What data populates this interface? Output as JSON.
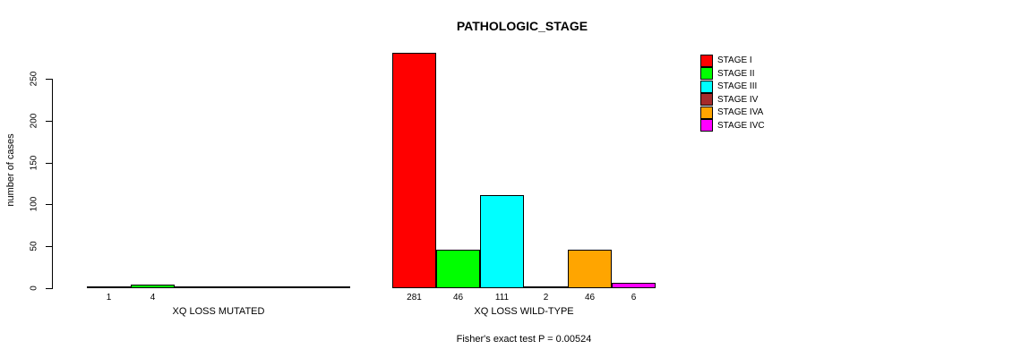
{
  "chart_data": {
    "type": "bar",
    "title": "PATHOLOGIC_STAGE",
    "ylabel": "number of cases",
    "yticks": [
      0,
      50,
      100,
      150,
      200,
      250
    ],
    "ylim": [
      0,
      281
    ],
    "grid": false,
    "legend_position": "right",
    "legend": [
      {
        "label": "STAGE I",
        "color": "#FF0000"
      },
      {
        "label": "STAGE II",
        "color": "#00FF00"
      },
      {
        "label": "STAGE III",
        "color": "#00FFFF"
      },
      {
        "label": "STAGE IV",
        "color": "#A52A2A"
      },
      {
        "label": "STAGE IVA",
        "color": "#FFA500"
      },
      {
        "label": "STAGE IVC",
        "color": "#FF00FF"
      }
    ],
    "groups": [
      {
        "label": "XQ LOSS MUTATED",
        "values": [
          1,
          4,
          0,
          0,
          0,
          0
        ],
        "value_labels": [
          "1",
          "4",
          "",
          "",
          "",
          ""
        ]
      },
      {
        "label": "XQ LOSS WILD-TYPE",
        "values": [
          281,
          46,
          111,
          2,
          46,
          6
        ],
        "value_labels": [
          "281",
          "46",
          "111",
          "2",
          "46",
          "6"
        ]
      }
    ],
    "footnote": "Fisher's exact test P = 0.00524"
  }
}
